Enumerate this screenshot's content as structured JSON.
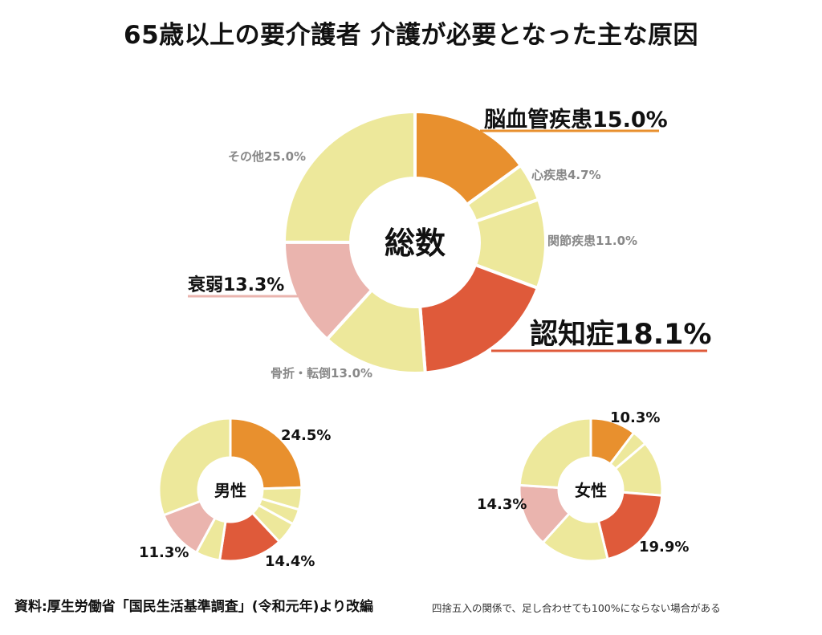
{
  "title": "65歳以上の要介護者 介護が必要となった主な原因",
  "source": "資料:厚生労働省「国民生活基準調査」(令和元年)より改編",
  "note": "四捨五入の関係で、足し合わせても100%にならない場合がある",
  "colors": {
    "orange": "#E8902E",
    "pale_yellow": "#EDE89B",
    "red": "#DF5A3A",
    "pink": "#EAB4AE",
    "separator": "#ffffff"
  },
  "chart_data": [
    {
      "type": "pie",
      "center_label": "総数",
      "start_angle_deg": 0,
      "slices": [
        {
          "label": "脳血管疾患15.0%",
          "value": 15.0,
          "color": "#E8902E",
          "emphasis": true
        },
        {
          "label": "心疾患4.7%",
          "value": 4.7,
          "color": "#EDE89B"
        },
        {
          "label": "関節疾患11.0%",
          "value": 11.0,
          "color": "#EDE89B"
        },
        {
          "label": "認知症18.1%",
          "value": 18.1,
          "color": "#DF5A3A",
          "emphasis": true
        },
        {
          "label": "骨折・転倒13.0%",
          "value": 13.0,
          "color": "#EDE89B"
        },
        {
          "label": "衰弱13.3%",
          "value": 13.3,
          "color": "#EAB4AE",
          "emphasis": true
        },
        {
          "label": "その他25.0%",
          "value": 25.0,
          "color": "#EDE89B"
        }
      ]
    },
    {
      "type": "pie",
      "center_label": "男性",
      "start_angle_deg": 0,
      "slices": [
        {
          "label": "24.5%",
          "value": 24.5,
          "color": "#E8902E"
        },
        {
          "label": "",
          "value": 5.0,
          "color": "#EDE89B"
        },
        {
          "label": "",
          "value": 3.5,
          "color": "#EDE89B"
        },
        {
          "label": "",
          "value": 5.0,
          "color": "#EDE89B"
        },
        {
          "label": "14.4%",
          "value": 14.4,
          "color": "#DF5A3A"
        },
        {
          "label": "",
          "value": 5.5,
          "color": "#EDE89B"
        },
        {
          "label": "11.3%",
          "value": 11.3,
          "color": "#EAB4AE"
        },
        {
          "label": "",
          "value": 30.8,
          "color": "#EDE89B"
        }
      ]
    },
    {
      "type": "pie",
      "center_label": "女性",
      "start_angle_deg": 0,
      "slices": [
        {
          "label": "10.3%",
          "value": 10.3,
          "color": "#E8902E"
        },
        {
          "label": "",
          "value": 3.5,
          "color": "#EDE89B"
        },
        {
          "label": "",
          "value": 12.5,
          "color": "#EDE89B"
        },
        {
          "label": "19.9%",
          "value": 19.9,
          "color": "#DF5A3A"
        },
        {
          "label": "",
          "value": 15.5,
          "color": "#EDE89B"
        },
        {
          "label": "14.3%",
          "value": 14.3,
          "color": "#EAB4AE"
        },
        {
          "label": "",
          "value": 24.0,
          "color": "#EDE89B"
        }
      ]
    }
  ]
}
